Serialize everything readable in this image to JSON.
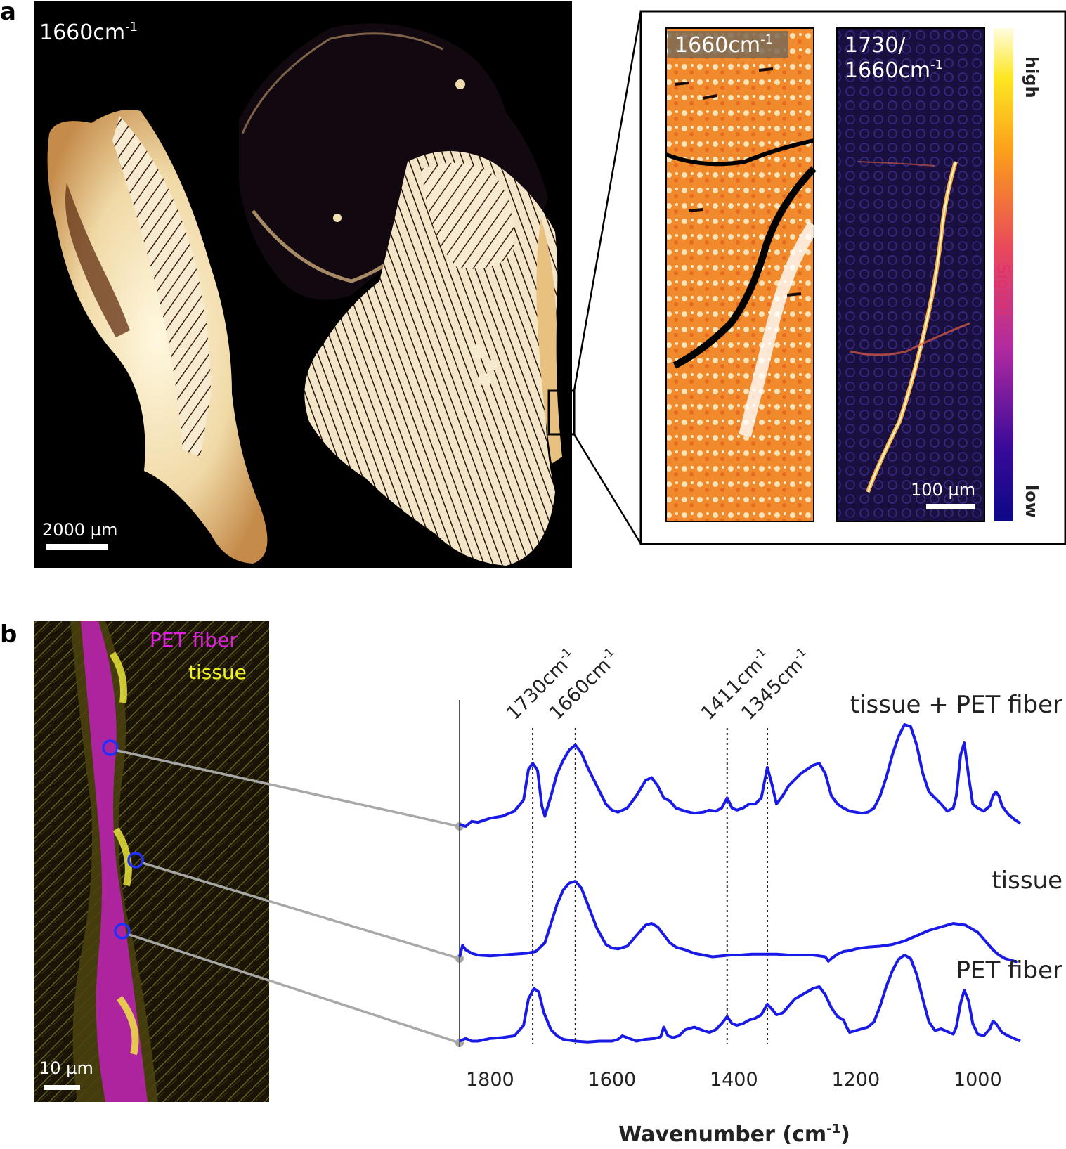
{
  "panel_a": {
    "letter": "a",
    "main_label": "1660cm",
    "main_label_sup": "-1",
    "main_scale": "2000 µm",
    "inset_left_label": "1660cm",
    "inset_left_sup": "-1",
    "inset_right_label_line1": "1730/",
    "inset_right_label_line2": "1660cm",
    "inset_right_sup": "-1",
    "inset_scale": "100 µm",
    "colorbar": {
      "high": "high",
      "title": "Signal",
      "low": "low"
    }
  },
  "panel_b": {
    "letter": "b",
    "legend_pet": "PET fiber",
    "legend_tissue": "tissue",
    "image_scale": "10 µm",
    "colors": {
      "pet": "#e020e0",
      "tissue": "#f0f020",
      "marker": "#2030ff",
      "spectrum": "#1a1ae6"
    }
  },
  "chart_data": {
    "type": "line",
    "xlabel": "Wavenumber (cm",
    "xlabel_sup": "-1",
    "xlabel_close": ")",
    "xlim": [
      1850,
      930
    ],
    "x_reversed": true,
    "xticks": [
      1800,
      1600,
      1400,
      1200,
      1000
    ],
    "xtick_labels": [
      "1800",
      "1600",
      "1400",
      "1200",
      "1000"
    ],
    "grid": false,
    "peak_lines": [
      {
        "x": 1730,
        "label": "1730cm",
        "sup": "-1"
      },
      {
        "x": 1660,
        "label": "1660cm",
        "sup": "-1"
      },
      {
        "x": 1411,
        "label": "1411cm",
        "sup": "-1"
      },
      {
        "x": 1345,
        "label": "1345cm",
        "sup": "-1"
      }
    ],
    "series": [
      {
        "name": "tissue + PET fiber",
        "offset": 2.0,
        "x": [
          1850,
          1840,
          1830,
          1820,
          1800,
          1780,
          1760,
          1745,
          1737,
          1730,
          1722,
          1715,
          1710,
          1700,
          1690,
          1680,
          1670,
          1660,
          1650,
          1640,
          1625,
          1610,
          1600,
          1590,
          1575,
          1560,
          1545,
          1535,
          1525,
          1515,
          1505,
          1495,
          1480,
          1465,
          1450,
          1440,
          1430,
          1420,
          1411,
          1403,
          1395,
          1385,
          1375,
          1365,
          1355,
          1345,
          1337,
          1330,
          1320,
          1310,
          1300,
          1290,
          1280,
          1270,
          1260,
          1250,
          1240,
          1230,
          1220,
          1210,
          1200,
          1190,
          1180,
          1170,
          1160,
          1150,
          1140,
          1130,
          1120,
          1110,
          1100,
          1090,
          1080,
          1070,
          1060,
          1050,
          1040,
          1035,
          1028,
          1022,
          1015,
          1008,
          1000,
          990,
          980,
          975,
          970,
          965,
          960,
          950,
          940,
          930
        ],
        "values": [
          0.02,
          0.0,
          0.05,
          0.04,
          0.08,
          0.1,
          0.15,
          0.26,
          0.56,
          0.62,
          0.55,
          0.2,
          0.1,
          0.3,
          0.52,
          0.65,
          0.75,
          0.8,
          0.72,
          0.58,
          0.4,
          0.22,
          0.16,
          0.14,
          0.18,
          0.3,
          0.45,
          0.48,
          0.4,
          0.28,
          0.25,
          0.18,
          0.15,
          0.13,
          0.14,
          0.16,
          0.15,
          0.18,
          0.28,
          0.18,
          0.16,
          0.18,
          0.22,
          0.22,
          0.28,
          0.58,
          0.4,
          0.22,
          0.3,
          0.4,
          0.46,
          0.52,
          0.56,
          0.6,
          0.62,
          0.52,
          0.3,
          0.22,
          0.18,
          0.15,
          0.14,
          0.13,
          0.14,
          0.18,
          0.3,
          0.48,
          0.7,
          0.88,
          1.0,
          0.98,
          0.8,
          0.52,
          0.34,
          0.28,
          0.22,
          0.15,
          0.18,
          0.3,
          0.7,
          0.82,
          0.5,
          0.22,
          0.18,
          0.15,
          0.2,
          0.3,
          0.34,
          0.3,
          0.2,
          0.12,
          0.07,
          0.03
        ]
      },
      {
        "name": "tissue",
        "offset": 1.0,
        "x": [
          1850,
          1845,
          1840,
          1830,
          1820,
          1800,
          1780,
          1760,
          1740,
          1725,
          1710,
          1700,
          1690,
          1680,
          1670,
          1660,
          1650,
          1640,
          1625,
          1610,
          1600,
          1590,
          1575,
          1560,
          1545,
          1535,
          1525,
          1515,
          1505,
          1495,
          1480,
          1465,
          1450,
          1435,
          1420,
          1405,
          1390,
          1370,
          1350,
          1330,
          1310,
          1290,
          1270,
          1260,
          1250,
          1245,
          1240,
          1230,
          1220,
          1210,
          1200,
          1190,
          1180,
          1160,
          1140,
          1120,
          1100,
          1080,
          1060,
          1040,
          1020,
          1000,
          985,
          975,
          965,
          955,
          945,
          935
        ],
        "values": [
          0.02,
          0.15,
          0.1,
          0.06,
          0.04,
          0.03,
          0.04,
          0.05,
          0.06,
          0.08,
          0.18,
          0.4,
          0.62,
          0.78,
          0.86,
          0.88,
          0.8,
          0.62,
          0.35,
          0.16,
          0.12,
          0.11,
          0.14,
          0.26,
          0.38,
          0.4,
          0.36,
          0.27,
          0.18,
          0.13,
          0.1,
          0.06,
          0.04,
          0.02,
          0.03,
          0.04,
          0.04,
          0.05,
          0.05,
          0.05,
          0.04,
          0.04,
          0.04,
          0.03,
          0.02,
          -0.03,
          0.0,
          0.05,
          0.08,
          0.09,
          0.11,
          0.12,
          0.13,
          0.14,
          0.16,
          0.2,
          0.26,
          0.32,
          0.36,
          0.4,
          0.38,
          0.3,
          0.18,
          0.1,
          0.04,
          0.0,
          -0.02,
          -0.04
        ]
      },
      {
        "name": "PET fiber",
        "offset": 0.0,
        "x": [
          1850,
          1840,
          1830,
          1820,
          1800,
          1780,
          1760,
          1745,
          1737,
          1728,
          1720,
          1712,
          1700,
          1690,
          1680,
          1660,
          1640,
          1620,
          1600,
          1590,
          1583,
          1575,
          1560,
          1545,
          1530,
          1520,
          1515,
          1508,
          1500,
          1490,
          1480,
          1465,
          1450,
          1440,
          1430,
          1420,
          1411,
          1403,
          1395,
          1385,
          1375,
          1365,
          1355,
          1345,
          1337,
          1330,
          1320,
          1310,
          1300,
          1290,
          1280,
          1270,
          1260,
          1250,
          1240,
          1230,
          1220,
          1215,
          1210,
          1200,
          1190,
          1180,
          1170,
          1160,
          1150,
          1140,
          1130,
          1120,
          1110,
          1100,
          1090,
          1080,
          1070,
          1060,
          1050,
          1040,
          1035,
          1028,
          1022,
          1015,
          1008,
          1000,
          990,
          980,
          975,
          970,
          960,
          950,
          940,
          930
        ],
        "values": [
          0.02,
          0.05,
          0.02,
          0.02,
          0.05,
          0.06,
          0.08,
          0.2,
          0.5,
          0.62,
          0.58,
          0.35,
          0.15,
          0.08,
          0.04,
          0.02,
          0.01,
          0.02,
          0.02,
          0.04,
          0.08,
          0.06,
          0.02,
          0.04,
          0.05,
          0.07,
          0.18,
          0.08,
          0.06,
          0.08,
          0.15,
          0.18,
          0.14,
          0.12,
          0.15,
          0.22,
          0.3,
          0.22,
          0.2,
          0.22,
          0.26,
          0.28,
          0.32,
          0.44,
          0.38,
          0.32,
          0.34,
          0.42,
          0.5,
          0.54,
          0.58,
          0.62,
          0.64,
          0.55,
          0.4,
          0.3,
          0.26,
          0.18,
          0.12,
          0.14,
          0.16,
          0.18,
          0.24,
          0.42,
          0.64,
          0.82,
          0.95,
          1.0,
          0.96,
          0.78,
          0.5,
          0.24,
          0.14,
          0.16,
          0.13,
          0.1,
          0.18,
          0.45,
          0.6,
          0.48,
          0.22,
          0.1,
          0.08,
          0.16,
          0.25,
          0.22,
          0.12,
          0.08,
          0.05,
          0.02
        ]
      }
    ]
  }
}
